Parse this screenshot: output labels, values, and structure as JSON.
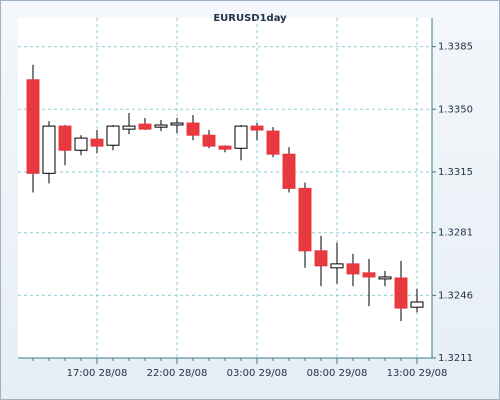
{
  "chart_data": {
    "type": "candlestick",
    "title": "EURUSD1day",
    "categories": [
      null,
      null,
      null,
      null,
      "17:00 28/08",
      null,
      null,
      null,
      null,
      "22:00 28/08",
      null,
      null,
      null,
      null,
      "03:00 29/08",
      null,
      null,
      null,
      null,
      "08:00 29/08",
      null,
      null,
      null,
      null,
      "13:00 29/08"
    ],
    "open": [
      1.33665,
      1.33142,
      1.33406,
      1.33271,
      1.33333,
      1.33299,
      1.33389,
      1.33417,
      1.334,
      1.33412,
      1.33423,
      1.33355,
      1.33294,
      1.33282,
      1.33406,
      1.33378,
      1.33249,
      1.33058,
      1.32709,
      1.32614,
      1.32636,
      1.32586,
      1.32552,
      1.32557,
      1.32394
    ],
    "high": [
      1.33749,
      1.33434,
      1.33412,
      1.33355,
      1.33384,
      1.33412,
      1.33479,
      1.33451,
      1.3344,
      1.33451,
      1.33468,
      1.33384,
      1.33299,
      1.33412,
      1.33423,
      1.334,
      1.33288,
      1.33091,
      1.32793,
      1.32754,
      1.32692,
      1.32664,
      1.32597,
      1.32653,
      1.32496
    ],
    "low": [
      1.33035,
      1.33086,
      1.33187,
      1.33243,
      1.33254,
      1.33271,
      1.33361,
      1.33384,
      1.33378,
      1.33367,
      1.33327,
      1.33282,
      1.3326,
      1.33215,
      1.33327,
      1.33232,
      1.33035,
      1.32614,
      1.32512,
      1.32524,
      1.32512,
      1.324,
      1.32512,
      1.32316,
      1.32366
    ],
    "close": [
      1.33142,
      1.33406,
      1.33271,
      1.33339,
      1.33294,
      1.33406,
      1.33406,
      1.33389,
      1.33412,
      1.33423,
      1.33355,
      1.33294,
      1.33277,
      1.33406,
      1.33384,
      1.33249,
      1.33058,
      1.32709,
      1.32625,
      1.32636,
      1.3258,
      1.32563,
      1.32563,
      1.32389,
      1.32423
    ],
    "up_color": "#ffffff",
    "down_color": "#e8393f",
    "ylim": [
      1.3211,
      1.3401
    ],
    "yticks": [
      1.3385,
      {
        "value": 1.335,
        "label": "1.3350"
      },
      1.3315,
      1.3281,
      1.3246,
      1.3211
    ],
    "grid": true
  }
}
